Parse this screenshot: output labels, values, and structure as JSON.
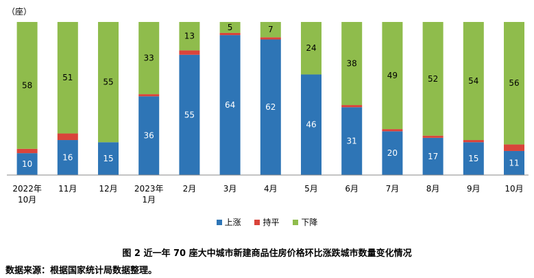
{
  "unit_label": "（座）",
  "caption": "图 2    近一年 70 座大中城市新建商品住房价格环比涨跌城市数量变化情况",
  "source": "数据来源：根据国家统计局数据整理。",
  "legend": [
    {
      "name": "上涨",
      "color": "#2e75b6"
    },
    {
      "name": "持平",
      "color": "#d9443b"
    },
    {
      "name": "下降",
      "color": "#8fbc4c"
    }
  ],
  "chart_data": {
    "type": "bar",
    "stacked": true,
    "categories": [
      [
        "2022年",
        "10月"
      ],
      [
        "11月"
      ],
      [
        "12月"
      ],
      [
        "2023年",
        "1月"
      ],
      [
        "2月"
      ],
      [
        "3月"
      ],
      [
        "4月"
      ],
      [
        "5月"
      ],
      [
        "6月"
      ],
      [
        "7月"
      ],
      [
        "8月"
      ],
      [
        "9月"
      ],
      [
        "10月"
      ]
    ],
    "series": [
      {
        "name": "上涨",
        "color": "#2e75b6",
        "values": [
          10,
          16,
          15,
          36,
          55,
          64,
          62,
          46,
          31,
          20,
          17,
          15,
          11
        ]
      },
      {
        "name": "持平",
        "color": "#d9443b",
        "values": [
          2,
          3,
          0,
          1,
          2,
          1,
          1,
          0,
          1,
          1,
          1,
          1,
          3
        ]
      },
      {
        "name": "下降",
        "color": "#8fbc4c",
        "values": [
          58,
          51,
          55,
          33,
          13,
          5,
          7,
          24,
          38,
          49,
          52,
          54,
          56
        ]
      }
    ],
    "ylim": [
      0,
      70
    ],
    "grid": false,
    "legend_position": "bottom"
  }
}
